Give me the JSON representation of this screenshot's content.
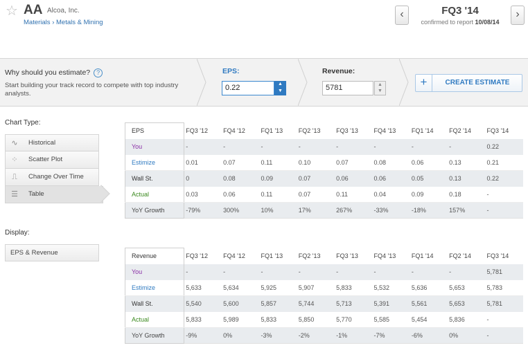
{
  "header": {
    "ticker": "AA",
    "company": "Alcoa, Inc.",
    "breadcrumb": [
      "Materials",
      "Metals & Mining"
    ],
    "breadcrumb_sep": "›",
    "quarter": "FQ3 '14",
    "confirmed_prefix": "confirmed to report",
    "confirmed_date": "10/08/14",
    "prev_glyph": "‹",
    "next_glyph": "›"
  },
  "estimate_bar": {
    "why_text": "Why should you estimate?",
    "help_glyph": "?",
    "why_desc": "Start building your track record to compete with top industry analysts.",
    "eps_label": "EPS:",
    "eps_value": "0.22",
    "revenue_label": "Revenue:",
    "revenue_value": "5781",
    "create_plus": "+",
    "create_label": "CREATE ESTIMATE"
  },
  "sidebar": {
    "chart_type_title": "Chart Type:",
    "chart_types": [
      {
        "label": "Historical",
        "icon": "wave-icon",
        "glyph": "∿"
      },
      {
        "label": "Scatter Plot",
        "icon": "scatter-icon",
        "glyph": "⁘"
      },
      {
        "label": "Change Over Time",
        "icon": "step-icon",
        "glyph": "⎍"
      },
      {
        "label": "Table",
        "icon": "table-icon",
        "glyph": "☰",
        "active": true
      }
    ],
    "display_title": "Display:",
    "display_value": "EPS & Revenue"
  },
  "eps_table": {
    "title": "EPS",
    "columns": [
      "FQ3 '12",
      "FQ4 '12",
      "FQ1 '13",
      "FQ2 '13",
      "FQ3 '13",
      "FQ4 '13",
      "FQ1 '14",
      "FQ2 '14",
      "FQ3 '14"
    ],
    "rows": [
      {
        "label": "You",
        "cls": "lab-you",
        "values": [
          "-",
          "-",
          "-",
          "-",
          "-",
          "-",
          "-",
          "-",
          "0.22"
        ]
      },
      {
        "label": "Estimize",
        "cls": "lab-estimize",
        "values": [
          "0.01",
          "0.07",
          "0.11",
          "0.10",
          "0.07",
          "0.08",
          "0.06",
          "0.13",
          "0.21"
        ]
      },
      {
        "label": "Wall St.",
        "cls": "lab-wall",
        "values": [
          "0",
          "0.08",
          "0.09",
          "0.07",
          "0.06",
          "0.06",
          "0.05",
          "0.13",
          "0.22"
        ]
      },
      {
        "label": "Actual",
        "cls": "lab-actual",
        "values": [
          "0.03",
          "0.06",
          "0.11",
          "0.07",
          "0.11",
          "0.04",
          "0.09",
          "0.18",
          "-"
        ]
      },
      {
        "label": "YoY Growth",
        "cls": "lab-yoy",
        "values": [
          "-79%",
          "300%",
          "10%",
          "17%",
          "267%",
          "-33%",
          "-18%",
          "157%",
          "-"
        ]
      }
    ]
  },
  "revenue_table": {
    "title": "Revenue",
    "columns": [
      "FQ3 '12",
      "FQ4 '12",
      "FQ1 '13",
      "FQ2 '13",
      "FQ3 '13",
      "FQ4 '13",
      "FQ1 '14",
      "FQ2 '14",
      "FQ3 '14"
    ],
    "rows": [
      {
        "label": "You",
        "cls": "lab-you",
        "values": [
          "-",
          "-",
          "-",
          "-",
          "-",
          "-",
          "-",
          "-",
          "5,781"
        ]
      },
      {
        "label": "Estimize",
        "cls": "lab-estimize",
        "values": [
          "5,633",
          "5,634",
          "5,925",
          "5,907",
          "5,833",
          "5,532",
          "5,636",
          "5,653",
          "5,783"
        ]
      },
      {
        "label": "Wall St.",
        "cls": "lab-wall",
        "values": [
          "5,540",
          "5,600",
          "5,857",
          "5,744",
          "5,713",
          "5,391",
          "5,561",
          "5,653",
          "5,781"
        ]
      },
      {
        "label": "Actual",
        "cls": "lab-actual",
        "values": [
          "5,833",
          "5,989",
          "5,833",
          "5,850",
          "5,770",
          "5,585",
          "5,454",
          "5,836",
          "-"
        ]
      },
      {
        "label": "YoY Growth",
        "cls": "lab-yoy",
        "values": [
          "-9%",
          "0%",
          "-3%",
          "-2%",
          "-1%",
          "-7%",
          "-6%",
          "0%",
          "-"
        ]
      }
    ]
  }
}
